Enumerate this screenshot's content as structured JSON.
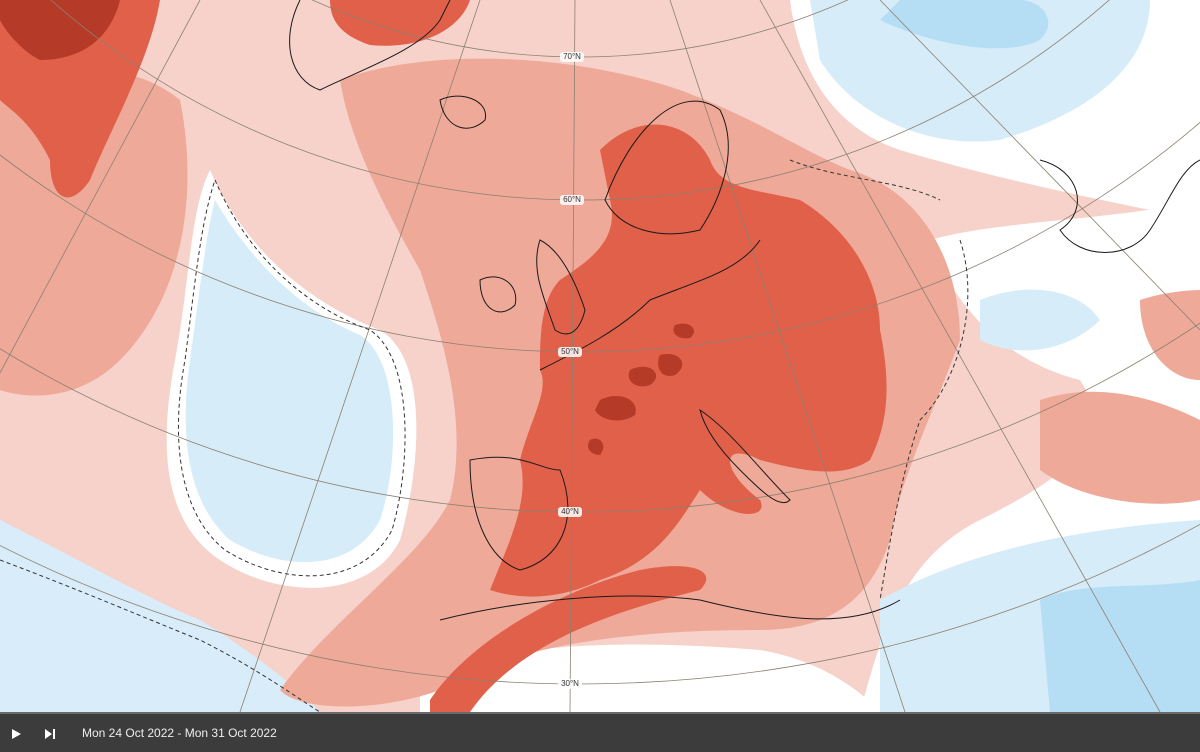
{
  "map": {
    "latitude_labels": [
      "70°N",
      "60°N",
      "50°N",
      "40°N",
      "30°N"
    ]
  },
  "player": {
    "date_range": "Mon 24 Oct 2022 - Mon 31 Oct 2022"
  }
}
